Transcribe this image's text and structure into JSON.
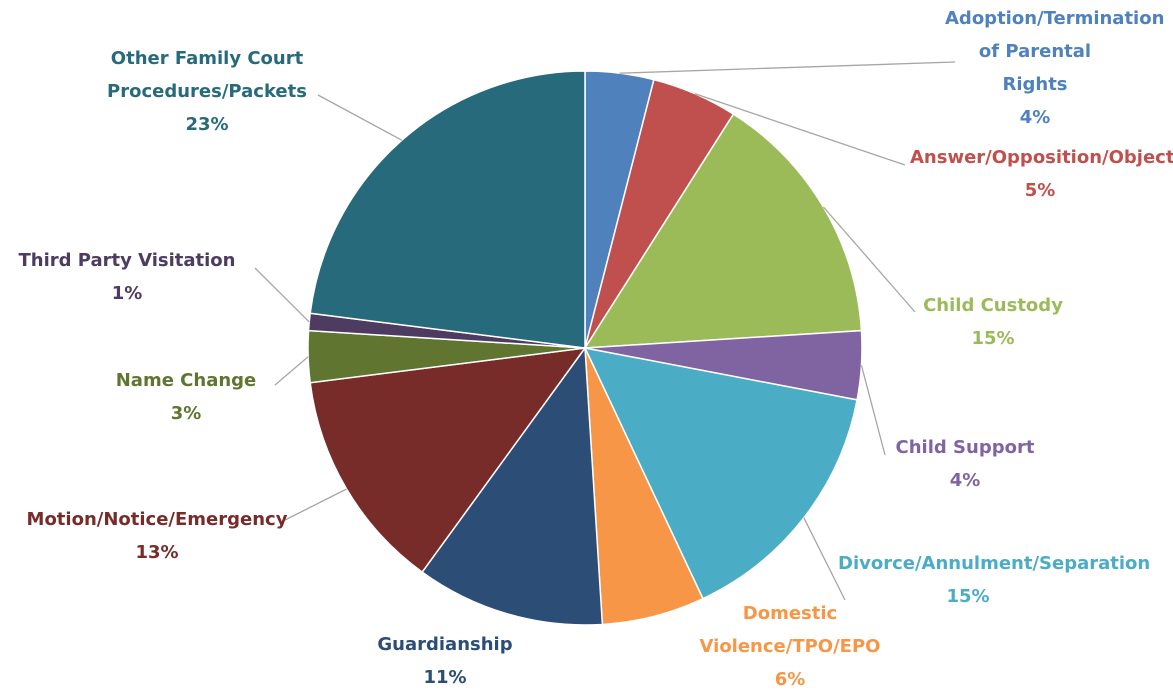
{
  "chart_data": {
    "type": "pie",
    "categories": [
      "Adoption/Termination of Parental Rights",
      "Answer/Opposition/Objection",
      "Child Custody",
      "Child Support",
      "Divorce/Annulment/Separation",
      "Domestic Violence/TPO/EPO",
      "Guardianship",
      "Motion/Notice/Emergency",
      "Name Change",
      "Third Party Visitation",
      "Other Family Court Procedures/Packets"
    ],
    "values": [
      4,
      5,
      15,
      4,
      15,
      6,
      11,
      13,
      3,
      1,
      23
    ],
    "value_labels": [
      "4%",
      "5%",
      "15%",
      "4%",
      "15%",
      "6%",
      "11%",
      "13%",
      "3%",
      "1%",
      "23%"
    ],
    "colors": [
      "#4f81bd",
      "#c0504d",
      "#9bbb59",
      "#8064a2",
      "#4bacc6",
      "#f79646",
      "#2c4d75",
      "#772c2a",
      "#5f7530",
      "#4d3b62",
      "#276a7c"
    ]
  }
}
